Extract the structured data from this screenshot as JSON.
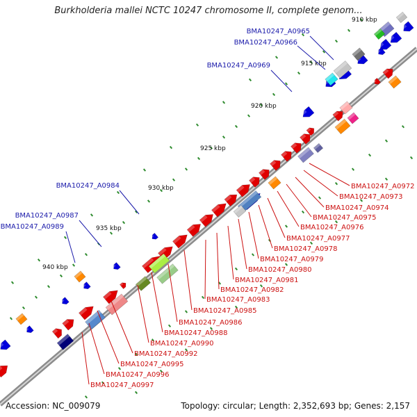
{
  "title": "Burkholderia mallei NCTC 10247 chromosome II, complete genom...",
  "footer": {
    "accession": "Accession: NC_009079",
    "summary": "Topology: circular; Length: 2,352,693 bp; Genes: 2,157"
  },
  "ticks": [
    "910 kbp",
    "915 kbp",
    "920 kbp",
    "925 kbp",
    "930 kbp",
    "935 kbp",
    "940 kbp"
  ],
  "labels_left": [
    "BMA10247_A0965",
    "BMA10247_A0966",
    "BMA10247_A0969",
    "BMA10247_A0984",
    "BMA10247_A0987",
    "BMA10247_A0989"
  ],
  "labels_right": [
    "BMA10247_A0972",
    "BMA10247_A0973",
    "BMA10247_A0974",
    "BMA10247_A0975",
    "BMA10247_A0976",
    "BMA10247_A0977",
    "BMA10247_A0978",
    "BMA10247_A0979",
    "BMA10247_A0980",
    "BMA10247_A0981",
    "BMA10247_A0982",
    "BMA10247_A0983",
    "BMA10247_A0985",
    "BMA10247_A0986",
    "BMA10247_A0988",
    "BMA10247_A0990",
    "BMA10247_A0992",
    "BMA10247_A0995",
    "BMA10247_A0996",
    "BMA10247_A0997"
  ],
  "colors": {
    "left_label": "#1a1aaa",
    "right_label": "#cc1111",
    "backbone": "#8c8c8c"
  }
}
